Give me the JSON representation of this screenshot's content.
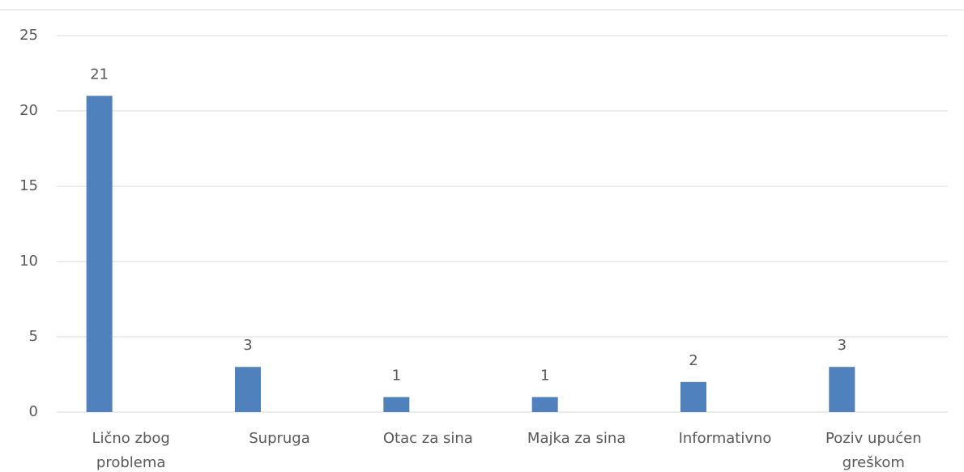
{
  "chart_data": {
    "type": "bar",
    "categories": [
      "Lično zbog problema",
      "Supruga",
      "Otac za sina",
      "Majka za sina",
      "Informativno",
      "Poziv upućen greškom"
    ],
    "values": [
      21,
      3,
      1,
      1,
      2,
      3
    ],
    "color": "#4f81bd",
    "ylim": [
      0,
      25
    ],
    "yticks": [
      0,
      5,
      10,
      15,
      20,
      25
    ],
    "grid": true
  }
}
